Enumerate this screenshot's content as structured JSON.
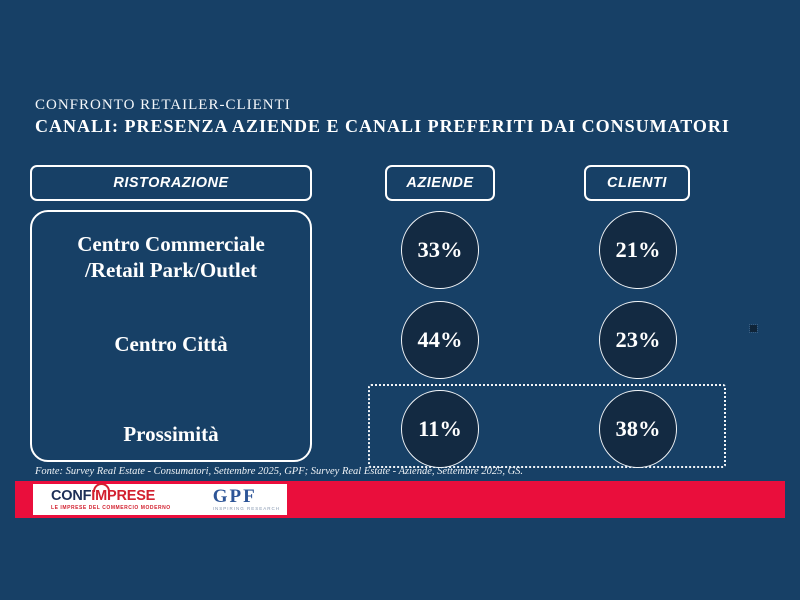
{
  "slide": {
    "eyebrow": "CONFRONTO RETAILER-CLIENTI",
    "title": "CANALI: PRESENZA AZIENDE E CANALI PREFERITI DAI CONSUMATORI",
    "source": "Fonte: Survey Real Estate - Consumatori, Settembre 2025, GPF; Survey Real Estate - Aziende, Settembre 2025, GS."
  },
  "headers": {
    "category": "RISTORAZIONE",
    "col_aziende": "AZIENDE",
    "col_clienti": "CLIENTI"
  },
  "rows": [
    {
      "label": [
        "Centro Commerciale",
        "/Retail Park/Outlet"
      ],
      "aziende": "33%",
      "clienti": "21%"
    },
    {
      "label": [
        "Centro Città"
      ],
      "aziende": "44%",
      "clienti": "23%"
    },
    {
      "label": [
        "Prossimità"
      ],
      "aziende": "11%",
      "clienti": "38%"
    }
  ],
  "chart_data": {
    "type": "table",
    "title": "CANALI: PRESENZA AZIENDE E CANALI PREFERITI DAI CONSUMATORI",
    "subtitle": "CONFRONTO RETAILER-CLIENTI",
    "section": "RISTORAZIONE",
    "categories": [
      "Centro Commerciale /Retail Park/Outlet",
      "Centro Città",
      "Prossimità"
    ],
    "series": [
      {
        "name": "AZIENDE",
        "values": [
          33,
          44,
          11
        ],
        "unit": "%"
      },
      {
        "name": "CLIENTI",
        "values": [
          21,
          23,
          38
        ],
        "unit": "%"
      }
    ],
    "annotations": [
      "Prossimità row (11% / 38%) enclosed in white dotted outline"
    ],
    "source": "Fonte: Survey Real Estate - Consumatori, Settembre 2025, GPF; Survey Real Estate - Aziende, Settembre 2025, GS."
  },
  "footer": {
    "confimprese": {
      "part1": "CONF",
      "part2": "IMPRESE",
      "tagline": "LE IMPRESE DEL COMMERCIO MODERNO"
    },
    "gpf": {
      "name": "GPF",
      "tagline": "INSPIRING RESEARCH"
    }
  },
  "colors": {
    "background": "#174066",
    "circle_fill": "#132a42",
    "accent_red": "#ea0e3c",
    "confimprese_navy": "#1c2e56",
    "confimprese_red": "#d2202f",
    "gpf_blue": "#2d5597",
    "text": "#ffffff"
  }
}
